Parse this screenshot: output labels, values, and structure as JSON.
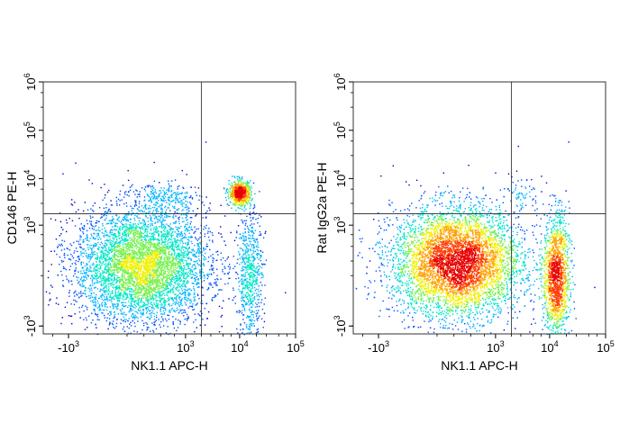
{
  "chart_data": [
    {
      "type": "scatter",
      "subtype": "flow-cytometry-density",
      "xlabel": "NK1.1 APC-H",
      "ylabel": "CD146 PE-H",
      "x_scale": "biexponential",
      "y_scale": "biexponential",
      "xlim": [
        -3000,
        100000
      ],
      "ylim": [
        -1500,
        1000000
      ],
      "x_ticks": [
        {
          "base": "-10",
          "exp": "3"
        },
        {
          "base": "10",
          "exp": "3"
        },
        {
          "base": "10",
          "exp": "4"
        },
        {
          "base": "10",
          "exp": "5"
        }
      ],
      "y_ticks": [
        {
          "base": "-10",
          "exp": "3"
        },
        {
          "base": "10",
          "exp": "3"
        },
        {
          "base": "10",
          "exp": "4"
        },
        {
          "base": "10",
          "exp": "5"
        },
        {
          "base": "10",
          "exp": "6"
        }
      ],
      "quadrant_gate": {
        "x": 2000,
        "y": 1800
      },
      "grid": false,
      "legend": "none",
      "populations": [
        {
          "x": 80,
          "y": 60,
          "sx": 2000,
          "sy": 1800,
          "n": 5200,
          "tag": "double-negative"
        },
        {
          "x": 15000,
          "y": 0,
          "sx": 9000,
          "sy": 1500,
          "n": 650,
          "tag": "nk1.1+ cd146-"
        },
        {
          "x": 10000,
          "y": 5000,
          "sx": 5000,
          "sy": 3500,
          "n": 700,
          "tag": "nk1.1+ cd146+"
        },
        {
          "x": 400,
          "y": 4000,
          "sx": 1200,
          "sy": 3500,
          "n": 220,
          "tag": "nk1.1- cd146+"
        }
      ]
    },
    {
      "type": "scatter",
      "subtype": "flow-cytometry-density",
      "xlabel": "NK1.1 APC-H",
      "ylabel": "Rat IgG2a PE-H",
      "x_scale": "biexponential",
      "y_scale": "biexponential",
      "xlim": [
        -3000,
        100000
      ],
      "ylim": [
        -1500,
        1000000
      ],
      "x_ticks": [
        {
          "base": "-10",
          "exp": "3"
        },
        {
          "base": "10",
          "exp": "3"
        },
        {
          "base": "10",
          "exp": "4"
        },
        {
          "base": "10",
          "exp": "5"
        }
      ],
      "y_ticks": [
        {
          "base": "-10",
          "exp": "3"
        },
        {
          "base": "10",
          "exp": "3"
        },
        {
          "base": "10",
          "exp": "4"
        },
        {
          "base": "10",
          "exp": "5"
        },
        {
          "base": "10",
          "exp": "6"
        }
      ],
      "quadrant_gate": {
        "x": 2000,
        "y": 1800
      },
      "grid": false,
      "legend": "none",
      "populations": [
        {
          "x": 120,
          "y": 90,
          "sx": 2200,
          "sy": 1800,
          "n": 5800,
          "tag": "double-negative"
        },
        {
          "x": 13000,
          "y": 0,
          "sx": 8000,
          "sy": 1400,
          "n": 1500,
          "tag": "nk1.1+"
        },
        {
          "x": 3000,
          "y": 5000,
          "sx": 3000,
          "sy": 6000,
          "n": 60,
          "tag": "sparse positive"
        }
      ]
    }
  ],
  "colors": {
    "frame": "#333333",
    "scale": [
      "#0000c8",
      "#0050ff",
      "#00b4ff",
      "#00e6c8",
      "#78f050",
      "#f0f000",
      "#ffa000",
      "#ff3c00",
      "#e60000"
    ]
  }
}
